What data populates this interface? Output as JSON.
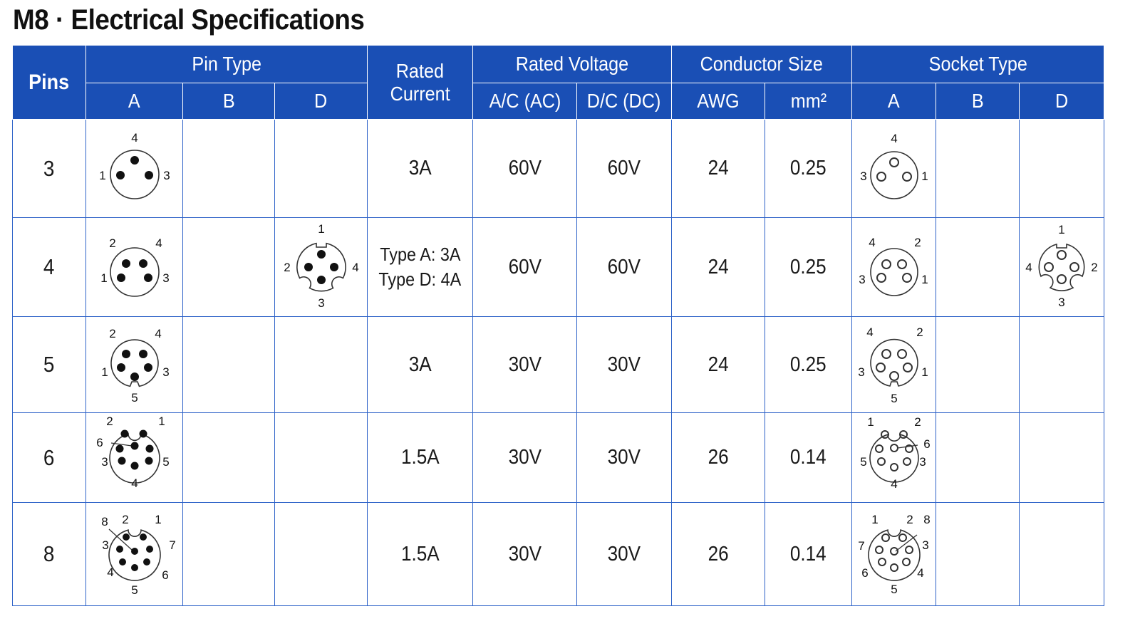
{
  "title": "M8 · Electrical Specifications",
  "colors": {
    "header_bg": "#1a4fb5",
    "grid": "#2d62c8",
    "text": "#1a1a1a"
  },
  "headers": {
    "pins": "Pins",
    "pin_type": "Pin Type",
    "rated_current": [
      "Rated",
      "Current"
    ],
    "rated_voltage": "Rated Voltage",
    "conductor_size": "Conductor Size",
    "socket_type": "Socket Type",
    "sub": {
      "pin_a": "A",
      "pin_b": "B",
      "pin_d": "D",
      "ac": "A/C (AC)",
      "dc": "D/C (DC)",
      "awg": "AWG",
      "mm2": "mm²",
      "sock_a": "A",
      "sock_b": "B",
      "sock_d": "D"
    }
  },
  "rows": [
    {
      "pins": "3",
      "current": [
        "3A"
      ],
      "ac": "60V",
      "dc": "60V",
      "awg": "24",
      "mm2": "0.25",
      "pin_a_icon": "m8-3pin-male-connector-icon",
      "pin_a_labels": [
        "4",
        "1",
        "3"
      ],
      "sock_a_icon": "m8-3pin-female-socket-icon",
      "sock_a_labels": [
        "4",
        "3",
        "1"
      ]
    },
    {
      "pins": "4",
      "current": [
        "Type A: 3A",
        "Type D: 4A"
      ],
      "ac": "60V",
      "dc": "60V",
      "awg": "24",
      "mm2": "0.25",
      "pin_a_icon": "m8-4pin-a-male-connector-icon",
      "pin_a_labels": [
        "2",
        "4",
        "1",
        "3"
      ],
      "pin_d_icon": "m8-4pin-d-male-connector-icon",
      "pin_d_labels": [
        "1",
        "2",
        "4",
        "3"
      ],
      "sock_a_icon": "m8-4pin-a-female-socket-icon",
      "sock_a_labels": [
        "4",
        "2",
        "3",
        "1"
      ],
      "sock_d_icon": "m8-4pin-d-female-socket-icon",
      "sock_d_labels": [
        "1",
        "4",
        "2",
        "3"
      ]
    },
    {
      "pins": "5",
      "current": [
        "3A"
      ],
      "ac": "30V",
      "dc": "30V",
      "awg": "24",
      "mm2": "0.25",
      "pin_a_icon": "m8-5pin-male-connector-icon",
      "pin_a_labels": [
        "2",
        "4",
        "1",
        "3",
        "5"
      ],
      "sock_a_icon": "m8-5pin-female-socket-icon",
      "sock_a_labels": [
        "4",
        "2",
        "3",
        "1",
        "5"
      ]
    },
    {
      "pins": "6",
      "current": [
        "1.5A"
      ],
      "ac": "30V",
      "dc": "30V",
      "awg": "26",
      "mm2": "0.14",
      "pin_a_icon": "m8-6pin-male-connector-icon",
      "pin_a_labels": [
        "2",
        "1",
        "6",
        "3",
        "5",
        "4"
      ],
      "sock_a_icon": "m8-6pin-female-socket-icon",
      "sock_a_labels": [
        "1",
        "2",
        "6",
        "5",
        "3",
        "4"
      ]
    },
    {
      "pins": "8",
      "current": [
        "1.5A"
      ],
      "ac": "30V",
      "dc": "30V",
      "awg": "26",
      "mm2": "0.14",
      "pin_a_icon": "m8-8pin-male-connector-icon",
      "pin_a_labels": [
        "8",
        "2",
        "1",
        "3",
        "7",
        "4",
        "6",
        "5"
      ],
      "sock_a_icon": "m8-8pin-female-socket-icon",
      "sock_a_labels": [
        "1",
        "2",
        "8",
        "7",
        "3",
        "6",
        "4",
        "5"
      ]
    }
  ]
}
